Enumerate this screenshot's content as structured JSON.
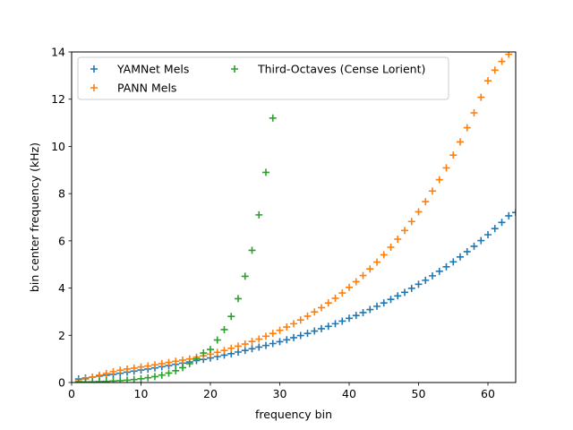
{
  "chart_data": {
    "type": "scatter",
    "title": "",
    "xlabel": "frequency bin",
    "ylabel": "bin center frequency (kHz)",
    "xlim": [
      0,
      64
    ],
    "ylim": [
      0,
      14
    ],
    "xticks": [
      0,
      10,
      20,
      30,
      40,
      50,
      60
    ],
    "yticks": [
      0,
      2,
      4,
      6,
      8,
      10,
      12,
      14
    ],
    "grid": false,
    "legend_position": "top-left",
    "series": [
      {
        "name": "YAMNet Mels",
        "color": "#1f77b4",
        "x": [
          1,
          2,
          3,
          4,
          5,
          6,
          7,
          8,
          9,
          10,
          11,
          12,
          13,
          14,
          15,
          16,
          17,
          18,
          19,
          20,
          21,
          22,
          23,
          24,
          25,
          26,
          27,
          28,
          29,
          30,
          31,
          32,
          33,
          34,
          35,
          36,
          37,
          38,
          39,
          40,
          41,
          42,
          43,
          44,
          45,
          46,
          47,
          48,
          49,
          50,
          51,
          52,
          53,
          54,
          55,
          56,
          57,
          58,
          59,
          60,
          61,
          62,
          63,
          64
        ],
        "y": [
          0.15,
          0.19,
          0.23,
          0.27,
          0.31,
          0.35,
          0.39,
          0.44,
          0.48,
          0.53,
          0.57,
          0.62,
          0.67,
          0.72,
          0.77,
          0.82,
          0.87,
          0.93,
          0.98,
          1.04,
          1.1,
          1.16,
          1.22,
          1.29,
          1.36,
          1.43,
          1.5,
          1.57,
          1.65,
          1.73,
          1.81,
          1.9,
          1.99,
          2.08,
          2.18,
          2.28,
          2.38,
          2.49,
          2.6,
          2.72,
          2.84,
          2.96,
          3.09,
          3.23,
          3.37,
          3.52,
          3.67,
          3.82,
          3.99,
          4.16,
          4.33,
          4.52,
          4.71,
          4.9,
          5.11,
          5.32,
          5.54,
          5.77,
          6.01,
          6.26,
          6.52,
          6.78,
          7.06,
          7.2
        ]
      },
      {
        "name": "PANN Mels",
        "color": "#ff7f0e",
        "x": [
          1,
          2,
          3,
          4,
          5,
          6,
          7,
          8,
          9,
          10,
          11,
          12,
          13,
          14,
          15,
          16,
          17,
          18,
          19,
          20,
          21,
          22,
          23,
          24,
          25,
          26,
          27,
          28,
          29,
          30,
          31,
          32,
          33,
          34,
          35,
          36,
          37,
          38,
          39,
          40,
          41,
          42,
          43,
          44,
          45,
          46,
          47,
          48,
          49,
          50,
          51,
          52,
          53,
          54,
          55,
          56,
          57,
          58,
          59,
          60,
          61,
          62,
          63,
          64
        ],
        "y": [
          0.07,
          0.15,
          0.23,
          0.31,
          0.38,
          0.46,
          0.52,
          0.57,
          0.61,
          0.66,
          0.7,
          0.75,
          0.8,
          0.85,
          0.9,
          0.95,
          1.0,
          1.07,
          1.13,
          1.2,
          1.28,
          1.36,
          1.45,
          1.54,
          1.63,
          1.74,
          1.84,
          1.96,
          2.08,
          2.21,
          2.35,
          2.49,
          2.65,
          2.81,
          2.99,
          3.17,
          3.37,
          3.57,
          3.79,
          4.03,
          4.27,
          4.53,
          4.81,
          5.1,
          5.41,
          5.73,
          6.07,
          6.44,
          6.82,
          7.23,
          7.66,
          8.11,
          8.59,
          9.09,
          9.63,
          10.19,
          10.79,
          11.42,
          12.08,
          12.78,
          13.23,
          13.6,
          13.9,
          14.2
        ]
      },
      {
        "name": "Third-Octaves (Cense Lorient)",
        "color": "#2ca02c",
        "x": [
          1,
          2,
          3,
          4,
          5,
          6,
          7,
          8,
          9,
          10,
          11,
          12,
          13,
          14,
          15,
          16,
          17,
          18,
          19,
          20,
          21,
          22,
          23,
          24,
          25,
          26,
          27,
          28,
          29
        ],
        "y": [
          0.02,
          0.025,
          0.03,
          0.04,
          0.05,
          0.063,
          0.08,
          0.1,
          0.125,
          0.16,
          0.2,
          0.25,
          0.315,
          0.4,
          0.5,
          0.63,
          0.8,
          1.0,
          1.25,
          1.4,
          1.8,
          2.24,
          2.8,
          3.55,
          4.5,
          5.6,
          7.1,
          8.9,
          11.2
        ]
      }
    ]
  }
}
